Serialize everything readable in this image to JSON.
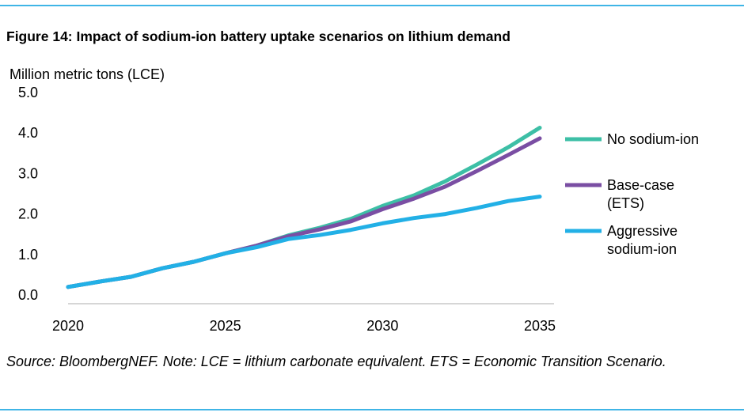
{
  "figure_title": "Figure 14: Impact of sodium-ion battery uptake scenarios on lithium demand",
  "source_note": "Source: BloombergNEF. Note: LCE = lithium carbonate equivalent. ETS = Economic Transition Scenario.",
  "colors": {
    "rule": "#3fb5e6"
  },
  "chart_data": {
    "type": "line",
    "title": "",
    "xlabel": "",
    "ylabel": "Million metric tons (LCE)",
    "xlim": [
      2020,
      2035
    ],
    "ylim": [
      0,
      5
    ],
    "x_ticks": [
      "2020",
      "2025",
      "2030",
      "2035"
    ],
    "y_ticks": [
      "0.0",
      "1.0",
      "2.0",
      "3.0",
      "4.0",
      "5.0"
    ],
    "grid": false,
    "legend_position": "right",
    "x": [
      2020,
      2021,
      2022,
      2023,
      2024,
      2025,
      2026,
      2027,
      2028,
      2029,
      2030,
      2031,
      2032,
      2033,
      2034,
      2035
    ],
    "series": [
      {
        "name": "No sodium-ion",
        "color": "#3dbfa6",
        "values": [
          0.2,
          0.33,
          0.45,
          0.66,
          0.82,
          1.03,
          1.22,
          1.47,
          1.66,
          1.88,
          2.2,
          2.46,
          2.81,
          3.22,
          3.65,
          4.13
        ]
      },
      {
        "name": "Base-case (ETS)",
        "color": "#7a4ea3",
        "values": [
          0.2,
          0.33,
          0.45,
          0.66,
          0.82,
          1.03,
          1.22,
          1.45,
          1.62,
          1.82,
          2.12,
          2.38,
          2.68,
          3.06,
          3.46,
          3.87
        ]
      },
      {
        "name": "Aggressive sodium-ion",
        "color": "#22b0e6",
        "values": [
          0.2,
          0.33,
          0.45,
          0.66,
          0.82,
          1.03,
          1.18,
          1.38,
          1.48,
          1.61,
          1.77,
          1.9,
          2.0,
          2.15,
          2.32,
          2.43
        ]
      }
    ],
    "legend": [
      {
        "lines": [
          "No sodium-ion"
        ]
      },
      {
        "lines": [
          "Base-case",
          "(ETS)"
        ]
      },
      {
        "lines": [
          "Aggressive",
          "sodium-ion"
        ]
      }
    ]
  }
}
